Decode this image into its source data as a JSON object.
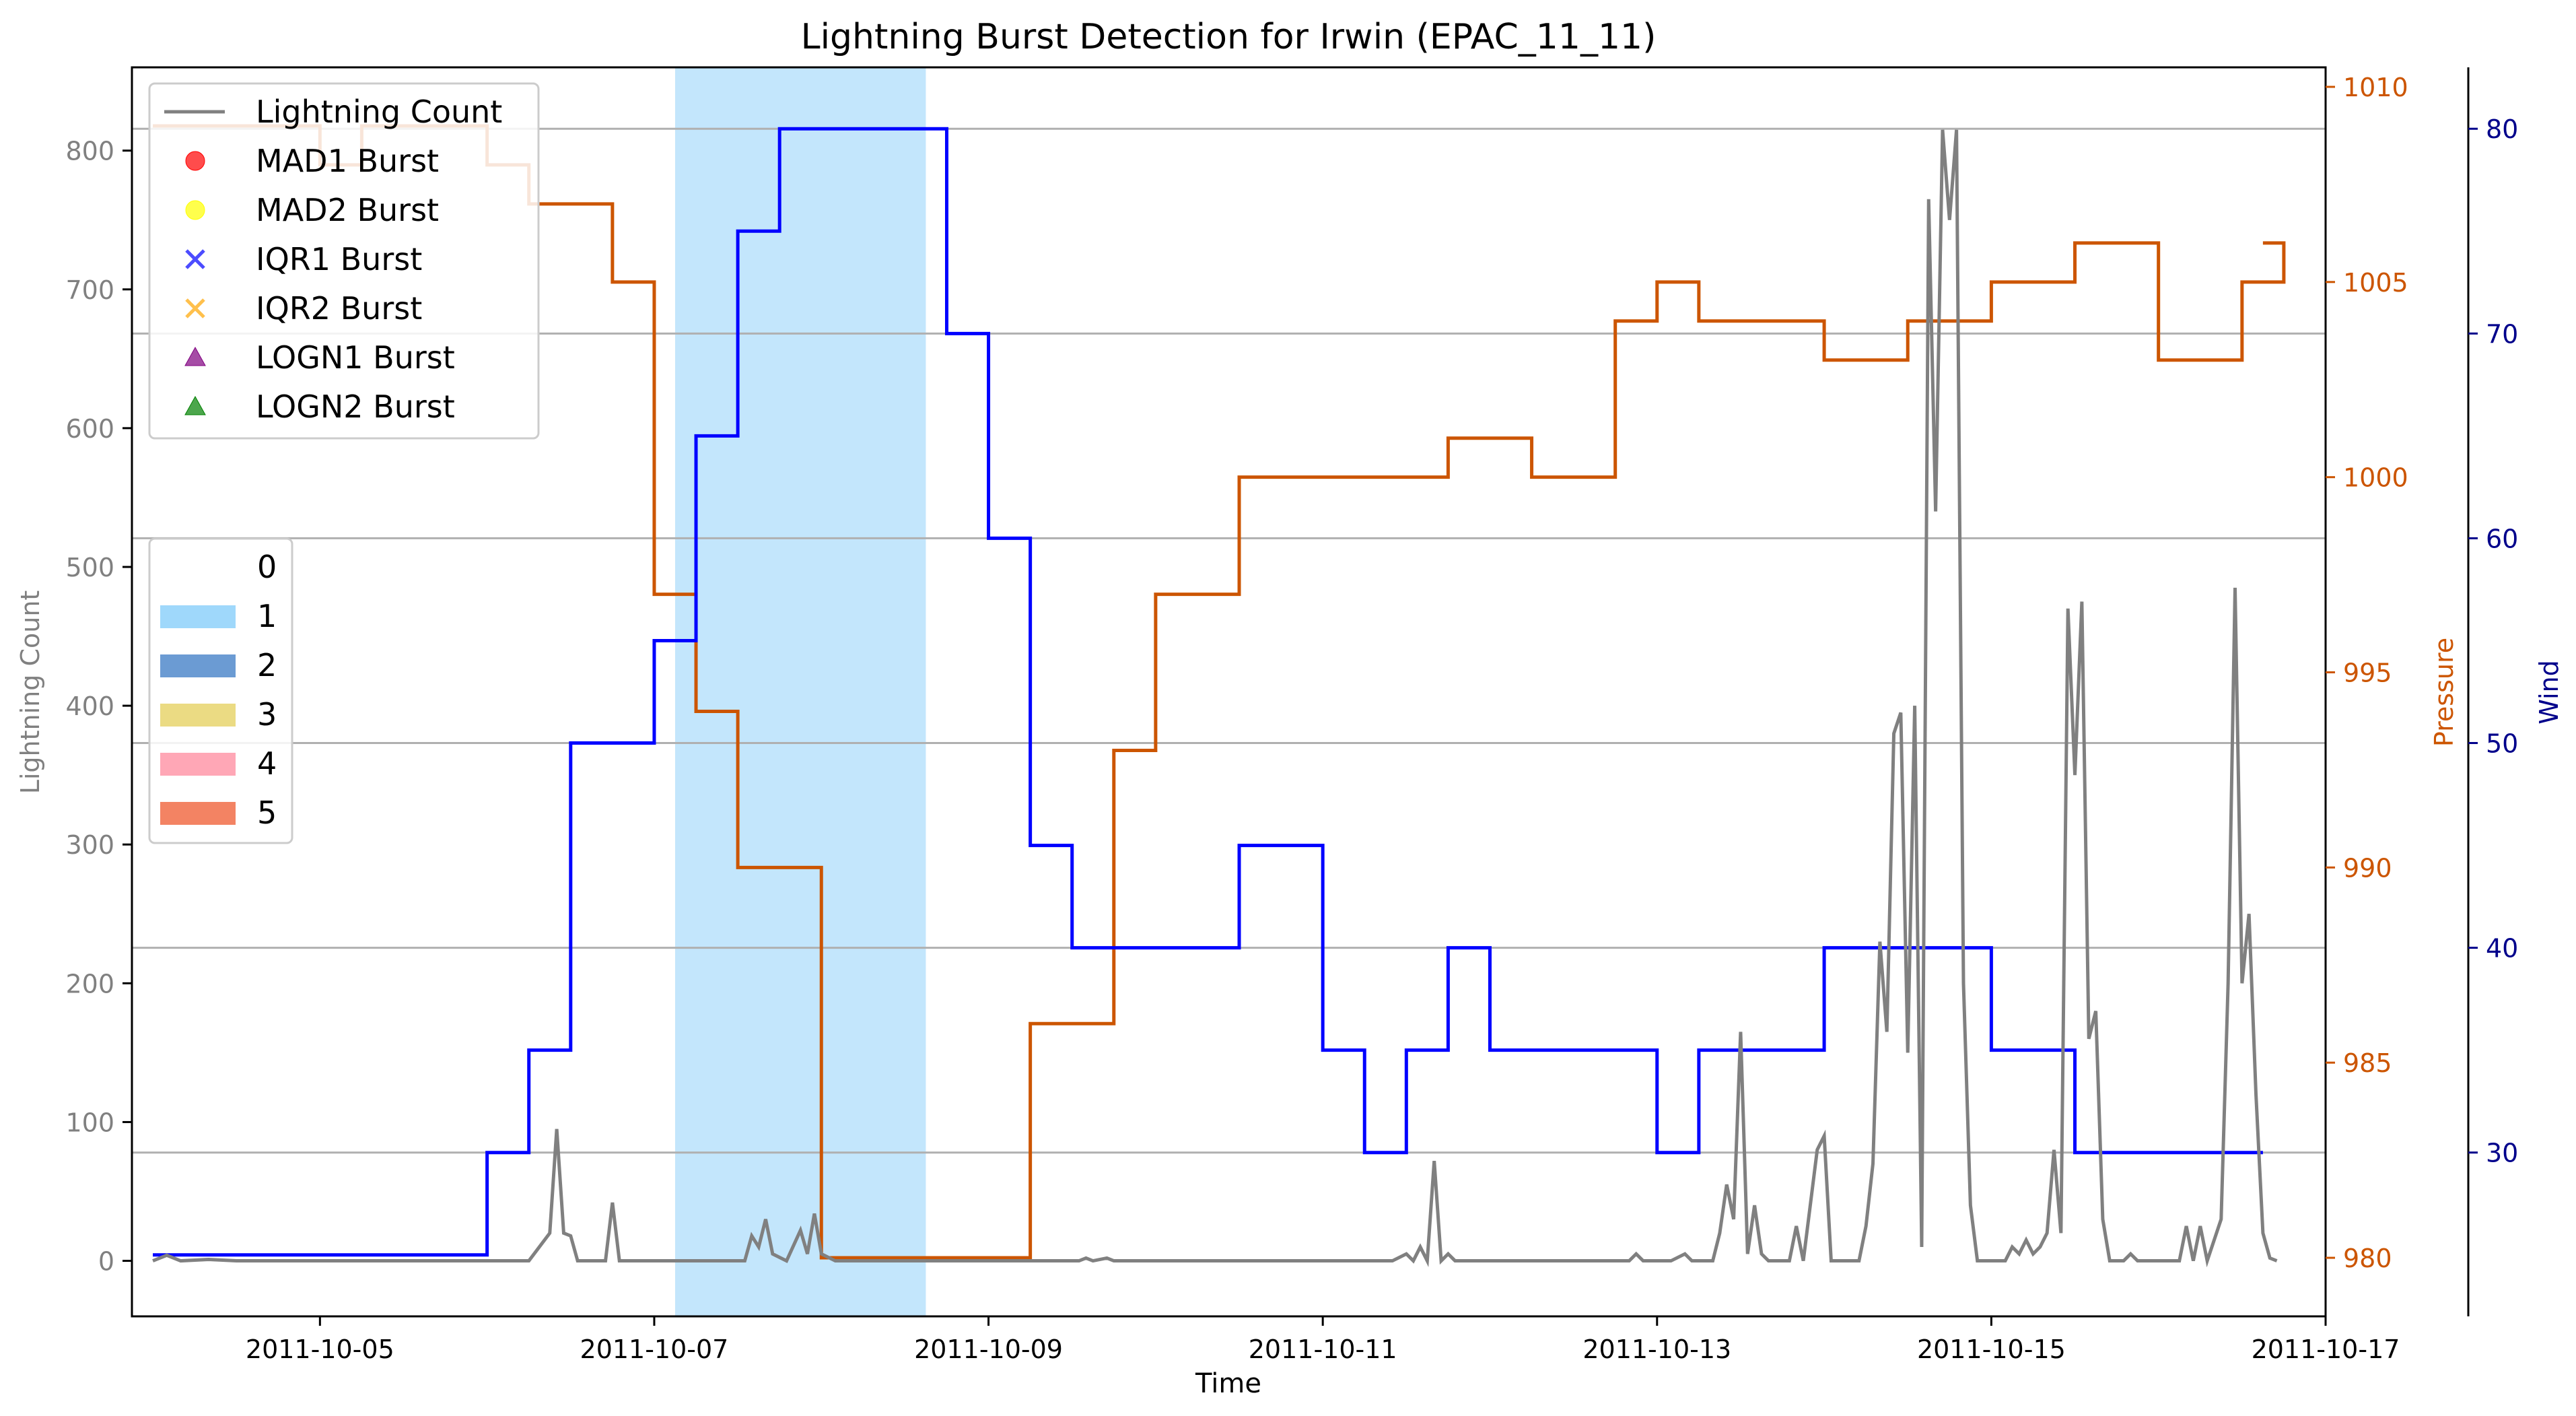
{
  "chart_data": {
    "type": "line",
    "title": "Lightning Burst Detection for Irwin (EPAC_11_11)",
    "xlabel": "Time",
    "ylabel_left": "Lightning Count",
    "ylabel_right1": "Pressure",
    "ylabel_right2": "Wind",
    "x_range": [
      "2011-10-03 21:00",
      "2011-10-17 00:00"
    ],
    "x_ticks": [
      "2011-10-05",
      "2011-10-07",
      "2011-10-09",
      "2011-10-11",
      "2011-10-13",
      "2011-10-15",
      "2011-10-17"
    ],
    "left_axis": {
      "ylim": [
        -40,
        860
      ],
      "ticks": [
        "0",
        "100",
        "200",
        "300",
        "400",
        "500",
        "600",
        "700",
        "800"
      ],
      "color": "#808080"
    },
    "pressure_axis": {
      "ylim": [
        978.5,
        1010.5
      ],
      "ticks": [
        "980",
        "985",
        "990",
        "995",
        "1000",
        "1005",
        "1010"
      ],
      "color": "#cc5500"
    },
    "wind_axis": {
      "ylim": [
        22,
        83
      ],
      "ticks": [
        "30",
        "40",
        "50",
        "60",
        "70",
        "80"
      ],
      "color": "#00008b"
    },
    "category_shading": [
      {
        "start": "2011-10-07 03:00",
        "end": "2011-10-08 15:00",
        "category": "1"
      }
    ],
    "legend_series": [
      {
        "label": "Lightning Count",
        "marker": "line",
        "color": "#808080"
      },
      {
        "label": "MAD1 Burst",
        "marker": "circle",
        "color": "#ff0000"
      },
      {
        "label": "MAD2 Burst",
        "marker": "circle",
        "color": "#ffff00"
      },
      {
        "label": "IQR1 Burst",
        "marker": "x",
        "color": "#0000ff"
      },
      {
        "label": "IQR2 Burst",
        "marker": "x",
        "color": "#ffa500"
      },
      {
        "label": "LOGN1 Burst",
        "marker": "triangle",
        "color": "#800080"
      },
      {
        "label": "LOGN2 Burst",
        "marker": "triangle",
        "color": "#008000"
      }
    ],
    "legend_categories": [
      {
        "label": "0",
        "color": "#ffffff"
      },
      {
        "label": "1",
        "color": "#87cefa"
      },
      {
        "label": "2",
        "color": "#4682c8"
      },
      {
        "label": "3",
        "color": "#e6d264"
      },
      {
        "label": "4",
        "color": "#ff91a4"
      },
      {
        "label": "5",
        "color": "#f0643c"
      }
    ],
    "series": [
      {
        "name": "Pressure",
        "axis": "pressure",
        "color": "#cc5500",
        "step_points": [
          [
            "2011-10-04 00:00",
            1009
          ],
          [
            "2011-10-05 00:00",
            1008
          ],
          [
            "2011-10-05 06:00",
            1009
          ],
          [
            "2011-10-06 00:00",
            1008
          ],
          [
            "2011-10-06 06:00",
            1007
          ],
          [
            "2011-10-06 18:00",
            1005
          ],
          [
            "2011-10-07 00:00",
            997
          ],
          [
            "2011-10-07 06:00",
            994
          ],
          [
            "2011-10-07 12:00",
            990
          ],
          [
            "2011-10-08 00:00",
            980
          ],
          [
            "2011-10-09 06:00",
            986
          ],
          [
            "2011-10-09 18:00",
            993
          ],
          [
            "2011-10-10 00:00",
            997
          ],
          [
            "2011-10-10 12:00",
            1000
          ],
          [
            "2011-10-11 18:00",
            1001
          ],
          [
            "2011-10-12 06:00",
            1000
          ],
          [
            "2011-10-12 18:00",
            1004
          ],
          [
            "2011-10-13 00:00",
            1005
          ],
          [
            "2011-10-13 06:00",
            1004
          ],
          [
            "2011-10-14 00:00",
            1003
          ],
          [
            "2011-10-14 12:00",
            1004
          ],
          [
            "2011-10-15 00:00",
            1005
          ],
          [
            "2011-10-15 12:00",
            1006
          ],
          [
            "2011-10-16 00:00",
            1003
          ],
          [
            "2011-10-16 12:00",
            1005
          ],
          [
            "2011-10-16 18:00",
            1006
          ]
        ],
        "end": "2011-10-16 15:00"
      },
      {
        "name": "Wind",
        "axis": "wind",
        "color": "#0000ff",
        "step_points": [
          [
            "2011-10-04 00:00",
            25
          ],
          [
            "2011-10-06 00:00",
            30
          ],
          [
            "2011-10-06 06:00",
            35
          ],
          [
            "2011-10-06 12:00",
            50
          ],
          [
            "2011-10-07 00:00",
            55
          ],
          [
            "2011-10-07 06:00",
            65
          ],
          [
            "2011-10-07 12:00",
            75
          ],
          [
            "2011-10-07 18:00",
            80
          ],
          [
            "2011-10-08 18:00",
            70
          ],
          [
            "2011-10-09 00:00",
            60
          ],
          [
            "2011-10-09 06:00",
            45
          ],
          [
            "2011-10-09 12:00",
            40
          ],
          [
            "2011-10-10 12:00",
            45
          ],
          [
            "2011-10-11 00:00",
            35
          ],
          [
            "2011-10-11 06:00",
            30
          ],
          [
            "2011-10-11 12:00",
            35
          ],
          [
            "2011-10-11 18:00",
            40
          ],
          [
            "2011-10-12 00:00",
            35
          ],
          [
            "2011-10-13 00:00",
            30
          ],
          [
            "2011-10-13 06:00",
            35
          ],
          [
            "2011-10-14 00:00",
            40
          ],
          [
            "2011-10-15 00:00",
            35
          ],
          [
            "2011-10-15 12:00",
            30
          ]
        ],
        "end": "2011-10-16 15:00"
      },
      {
        "name": "Lightning Count",
        "axis": "left",
        "color": "#808080",
        "points": [
          [
            "2011-10-04 00:00",
            0
          ],
          [
            "2011-10-04 02:00",
            4
          ],
          [
            "2011-10-04 04:00",
            0
          ],
          [
            "2011-10-04 08:00",
            1
          ],
          [
            "2011-10-04 12:00",
            0
          ],
          [
            "2011-10-05 00:00",
            0
          ],
          [
            "2011-10-06 06:00",
            0
          ],
          [
            "2011-10-06 09:00",
            20
          ],
          [
            "2011-10-06 10:00",
            95
          ],
          [
            "2011-10-06 11:00",
            20
          ],
          [
            "2011-10-06 12:00",
            18
          ],
          [
            "2011-10-06 13:00",
            0
          ],
          [
            "2011-10-06 17:00",
            0
          ],
          [
            "2011-10-06 18:00",
            42
          ],
          [
            "2011-10-06 19:00",
            0
          ],
          [
            "2011-10-07 13:00",
            0
          ],
          [
            "2011-10-07 14:00",
            18
          ],
          [
            "2011-10-07 15:00",
            10
          ],
          [
            "2011-10-07 16:00",
            30
          ],
          [
            "2011-10-07 17:00",
            5
          ],
          [
            "2011-10-07 19:00",
            0
          ],
          [
            "2011-10-07 21:00",
            22
          ],
          [
            "2011-10-07 22:00",
            5
          ],
          [
            "2011-10-07 23:00",
            34
          ],
          [
            "2011-10-08 00:00",
            5
          ],
          [
            "2011-10-08 02:00",
            0
          ],
          [
            "2011-10-09 13:00",
            0
          ],
          [
            "2011-10-09 14:00",
            2
          ],
          [
            "2011-10-09 15:00",
            0
          ],
          [
            "2011-10-09 17:00",
            2
          ],
          [
            "2011-10-09 18:00",
            0
          ],
          [
            "2011-10-11 10:00",
            0
          ],
          [
            "2011-10-11 12:00",
            5
          ],
          [
            "2011-10-11 13:00",
            0
          ],
          [
            "2011-10-11 14:00",
            10
          ],
          [
            "2011-10-11 15:00",
            0
          ],
          [
            "2011-10-11 16:00",
            72
          ],
          [
            "2011-10-11 17:00",
            0
          ],
          [
            "2011-10-11 18:00",
            5
          ],
          [
            "2011-10-11 19:00",
            0
          ],
          [
            "2011-10-12 20:00",
            0
          ],
          [
            "2011-10-12 21:00",
            5
          ],
          [
            "2011-10-12 22:00",
            0
          ],
          [
            "2011-10-13 02:00",
            0
          ],
          [
            "2011-10-13 04:00",
            5
          ],
          [
            "2011-10-13 05:00",
            0
          ],
          [
            "2011-10-13 08:00",
            0
          ],
          [
            "2011-10-13 09:00",
            20
          ],
          [
            "2011-10-13 10:00",
            55
          ],
          [
            "2011-10-13 11:00",
            30
          ],
          [
            "2011-10-13 12:00",
            165
          ],
          [
            "2011-10-13 13:00",
            5
          ],
          [
            "2011-10-13 14:00",
            40
          ],
          [
            "2011-10-13 15:00",
            5
          ],
          [
            "2011-10-13 16:00",
            0
          ],
          [
            "2011-10-13 19:00",
            0
          ],
          [
            "2011-10-13 20:00",
            25
          ],
          [
            "2011-10-13 21:00",
            0
          ],
          [
            "2011-10-13 23:00",
            80
          ],
          [
            "2011-10-14 00:00",
            90
          ],
          [
            "2011-10-14 01:00",
            0
          ],
          [
            "2011-10-14 05:00",
            0
          ],
          [
            "2011-10-14 06:00",
            25
          ],
          [
            "2011-10-14 07:00",
            70
          ],
          [
            "2011-10-14 08:00",
            230
          ],
          [
            "2011-10-14 09:00",
            165
          ],
          [
            "2011-10-14 10:00",
            380
          ],
          [
            "2011-10-14 11:00",
            395
          ],
          [
            "2011-10-14 12:00",
            150
          ],
          [
            "2011-10-14 13:00",
            400
          ],
          [
            "2011-10-14 14:00",
            10
          ],
          [
            "2011-10-14 15:00",
            765
          ],
          [
            "2011-10-14 16:00",
            540
          ],
          [
            "2011-10-14 17:00",
            815
          ],
          [
            "2011-10-14 18:00",
            750
          ],
          [
            "2011-10-14 19:00",
            815
          ],
          [
            "2011-10-14 20:00",
            200
          ],
          [
            "2011-10-14 21:00",
            40
          ],
          [
            "2011-10-14 22:00",
            0
          ],
          [
            "2011-10-15 02:00",
            0
          ],
          [
            "2011-10-15 03:00",
            10
          ],
          [
            "2011-10-15 04:00",
            5
          ],
          [
            "2011-10-15 05:00",
            15
          ],
          [
            "2011-10-15 06:00",
            5
          ],
          [
            "2011-10-15 07:00",
            10
          ],
          [
            "2011-10-15 08:00",
            20
          ],
          [
            "2011-10-15 09:00",
            80
          ],
          [
            "2011-10-15 10:00",
            20
          ],
          [
            "2011-10-15 11:00",
            470
          ],
          [
            "2011-10-15 12:00",
            350
          ],
          [
            "2011-10-15 13:00",
            475
          ],
          [
            "2011-10-15 14:00",
            160
          ],
          [
            "2011-10-15 15:00",
            180
          ],
          [
            "2011-10-15 16:00",
            30
          ],
          [
            "2011-10-15 17:00",
            0
          ],
          [
            "2011-10-15 19:00",
            0
          ],
          [
            "2011-10-15 20:00",
            5
          ],
          [
            "2011-10-15 21:00",
            0
          ],
          [
            "2011-10-16 03:00",
            0
          ],
          [
            "2011-10-16 04:00",
            25
          ],
          [
            "2011-10-16 05:00",
            0
          ],
          [
            "2011-10-16 06:00",
            25
          ],
          [
            "2011-10-16 07:00",
            0
          ],
          [
            "2011-10-16 09:00",
            30
          ],
          [
            "2011-10-16 10:00",
            200
          ],
          [
            "2011-10-16 11:00",
            485
          ],
          [
            "2011-10-16 12:00",
            200
          ],
          [
            "2011-10-16 13:00",
            250
          ],
          [
            "2011-10-16 14:00",
            120
          ],
          [
            "2011-10-16 15:00",
            20
          ],
          [
            "2011-10-16 16:00",
            2
          ],
          [
            "2011-10-16 17:00",
            0
          ]
        ]
      }
    ],
    "gridlines_note": "horizontal gridlines at wind axis ticks"
  }
}
